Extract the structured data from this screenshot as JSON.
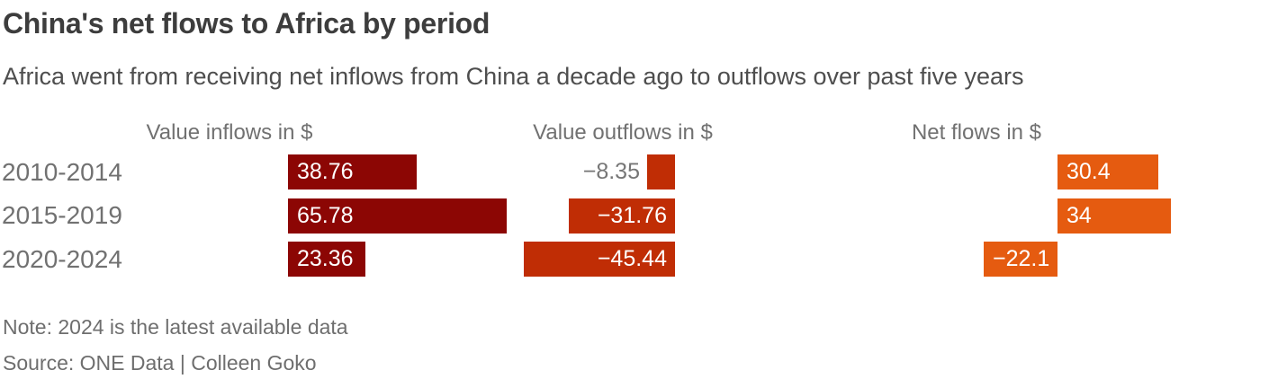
{
  "page": {
    "title": "China's net flows to Africa by period",
    "subtitle": "Africa went from receiving net inflows from China a decade ago to outflows over past five years"
  },
  "chart_data": {
    "type": "bar",
    "orientation": "horizontal",
    "categories": [
      "2010-2014",
      "2015-2019",
      "2020-2024"
    ],
    "series": [
      {
        "name": "Value inflows in $",
        "values": [
          38.76,
          65.78,
          23.36
        ],
        "labels": [
          "38.76",
          "65.78",
          "23.36"
        ],
        "color": "#8C0604",
        "anchor": "left",
        "label_align": "left"
      },
      {
        "name": "Value outflows in $",
        "values": [
          -8.35,
          -31.76,
          -45.44
        ],
        "labels": [
          "−8.35",
          "−31.76",
          "−45.44"
        ],
        "color": "#C02D05",
        "anchor": "right",
        "label_align": "right"
      },
      {
        "name": "Net flows in $",
        "values": [
          30.4,
          34,
          -22.1
        ],
        "labels": [
          "30.4",
          "34",
          "−22.1"
        ],
        "color": "#E55B10",
        "anchor": "baseline",
        "label_align": "left"
      }
    ],
    "value_label_inside_color": "#ffffff",
    "value_label_outside_color": "#767676",
    "legend": "none",
    "grid": false,
    "axis_ticks": "none"
  },
  "footer": {
    "note": "Note: 2024 is the latest available data",
    "source": "Source: ONE Data | Colleen Goko"
  }
}
